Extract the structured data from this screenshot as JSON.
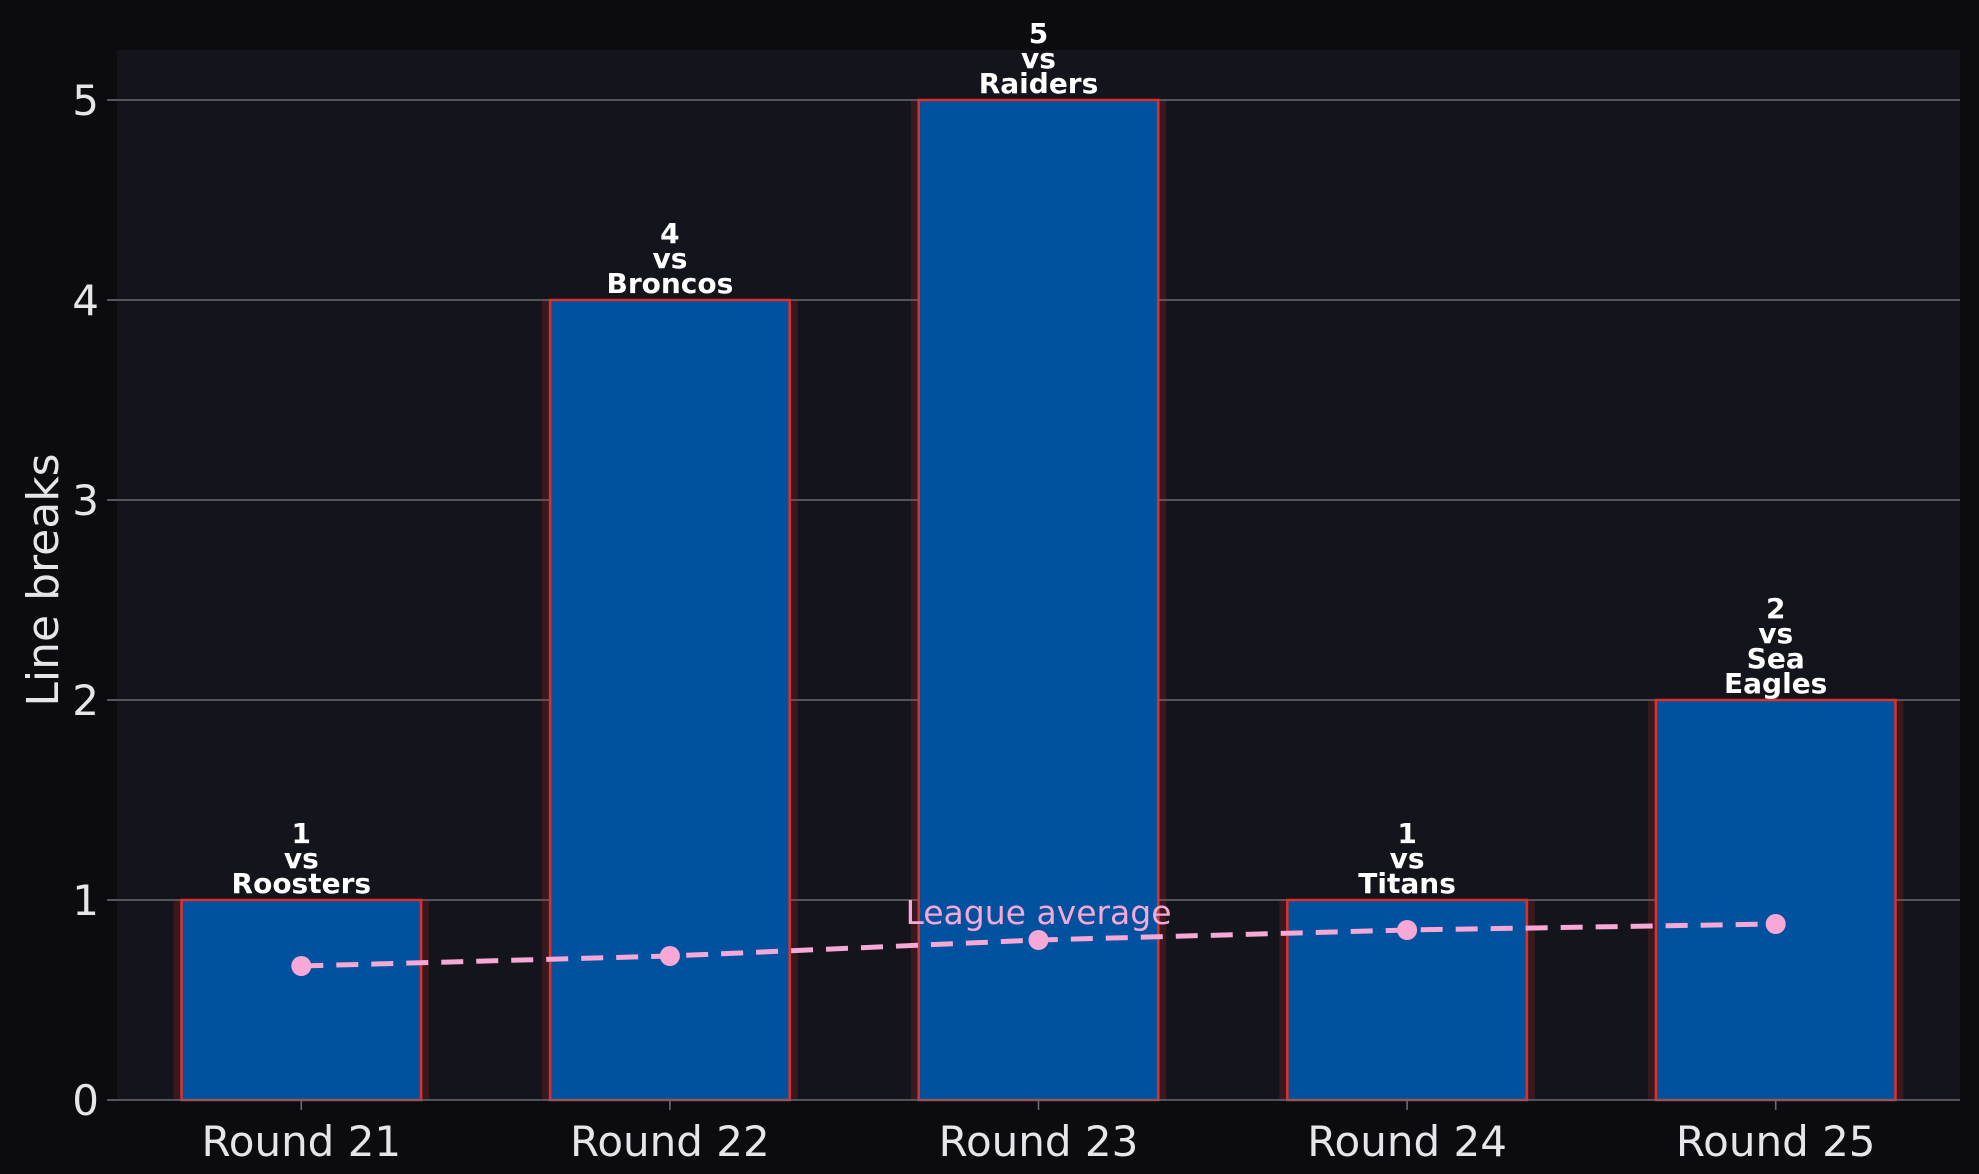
{
  "chart_data": {
    "type": "bar",
    "categories": [
      "Round 21",
      "Round 22",
      "Round 23",
      "Round 24",
      "Round 25"
    ],
    "values": [
      1,
      4,
      5,
      1,
      2
    ],
    "annotations": [
      [
        "1",
        "vs",
        "Roosters"
      ],
      [
        "4",
        "vs",
        "Broncos"
      ],
      [
        "5",
        "vs",
        "Raiders"
      ],
      [
        "1",
        "vs",
        "Titans"
      ],
      [
        "2",
        "vs",
        "Sea",
        "Eagles"
      ]
    ],
    "line_series": {
      "name": "League average",
      "values": [
        0.67,
        0.72,
        0.8,
        0.85,
        0.88
      ],
      "style": "dashed"
    },
    "title": "",
    "xlabel": "",
    "ylabel": "Line breaks",
    "ylim": [
      0,
      5.25
    ],
    "yticks": [
      0,
      1,
      2,
      3,
      4,
      5
    ],
    "grid": "horizontal",
    "colors": {
      "background": "#0b0b10",
      "plot_background": "#13141c",
      "bar_fill": "#00529f",
      "bar_edge": "#e0302a",
      "line": "#f7a8d6",
      "grid": "#6a6a70",
      "text": "#e6e6ea"
    }
  }
}
